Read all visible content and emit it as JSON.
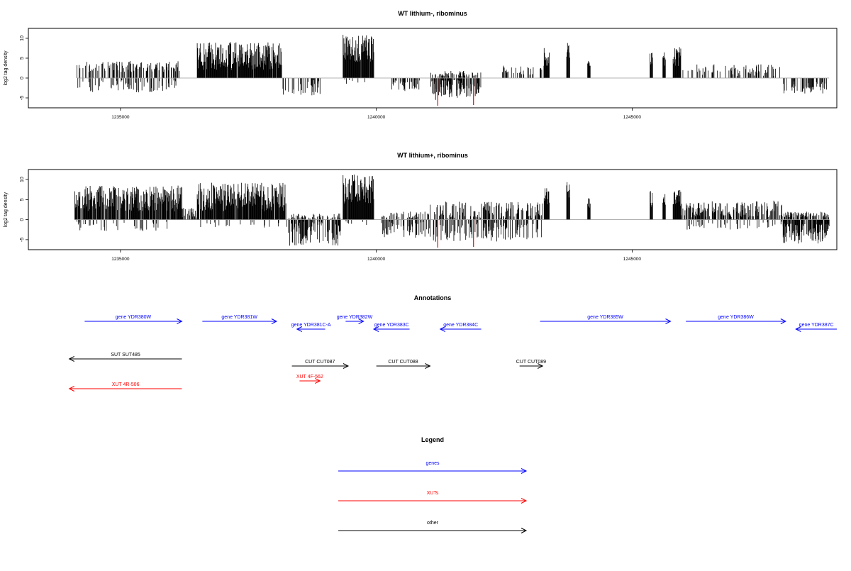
{
  "colors": {
    "axis": "#000000",
    "bar_positive": "#000000",
    "bar_negative": "#000000",
    "bar_highlight": "#ff0000",
    "baseline": "#9a9a9a",
    "gene": "#0000ff",
    "xut": "#ff0000",
    "other": "#000000"
  },
  "chart_data": [
    {
      "type": "bar",
      "title": "WT lithium-, ribominus",
      "ylabel": "log2 tag density",
      "xlim": [
        1233200,
        1249000
      ],
      "ylim": [
        -7.5,
        12.5
      ],
      "xticks": [
        1235000,
        1240000,
        1245000
      ],
      "xtick_labels": [
        "1235000",
        "1240000",
        "1245000"
      ],
      "yticks": [
        -5,
        0,
        5,
        10
      ],
      "ytick_labels": [
        "-5",
        "0",
        "5",
        "10"
      ],
      "grid": false,
      "segments": [
        {
          "from": 1234150,
          "to": 1236150,
          "pos": [
            1.5,
            4.3
          ],
          "neg": [
            -0.5,
            -3.6
          ],
          "density": 0.55,
          "neg_freq": 0.45
        },
        {
          "from": 1236500,
          "to": 1238150,
          "pos": [
            2.0,
            9.0
          ],
          "neg": [
            0,
            0
          ],
          "density": 0.95,
          "neg_freq": 0
        },
        {
          "from": 1238150,
          "to": 1238900,
          "pos": [
            0,
            0
          ],
          "neg": [
            -0.5,
            -4.4
          ],
          "density": 0.35,
          "neg_freq": 1
        },
        {
          "from": 1239350,
          "to": 1239950,
          "pos": [
            4.0,
            11.0
          ],
          "neg": [
            -0.3,
            -1.5
          ],
          "density": 0.98,
          "neg_freq": 0.1
        },
        {
          "from": 1240300,
          "to": 1240850,
          "pos": [
            0,
            0
          ],
          "neg": [
            -0.5,
            -3.5
          ],
          "density": 0.4,
          "neg_freq": 1
        },
        {
          "from": 1241050,
          "to": 1242050,
          "pos": [
            0.3,
            1.8
          ],
          "neg": [
            -0.5,
            -5.0
          ],
          "density": 0.8,
          "neg_freq": 0.85
        },
        {
          "from": 1242450,
          "to": 1243300,
          "pos": [
            0.8,
            3.2
          ],
          "neg": [
            0,
            0
          ],
          "density": 0.25,
          "neg_freq": 0
        },
        {
          "from": 1243280,
          "to": 1243380,
          "pos": [
            3.0,
            8.0
          ],
          "neg": [
            0,
            0
          ],
          "density": 1.0,
          "neg_freq": 0
        },
        {
          "from": 1243720,
          "to": 1243780,
          "pos": [
            5.0,
            10.2
          ],
          "neg": [
            0,
            0
          ],
          "density": 1.0,
          "neg_freq": 0
        },
        {
          "from": 1244130,
          "to": 1244180,
          "pos": [
            3.0,
            5.5
          ],
          "neg": [
            0,
            0
          ],
          "density": 1.0,
          "neg_freq": 0
        },
        {
          "from": 1245350,
          "to": 1245400,
          "pos": [
            3.0,
            7.8
          ],
          "neg": [
            0,
            0
          ],
          "density": 1.0,
          "neg_freq": 0
        },
        {
          "from": 1245600,
          "to": 1245650,
          "pos": [
            3.0,
            7.0
          ],
          "neg": [
            0,
            0
          ],
          "density": 1.0,
          "neg_freq": 0
        },
        {
          "from": 1245800,
          "to": 1245950,
          "pos": [
            3.0,
            8.0
          ],
          "neg": [
            0,
            0
          ],
          "density": 1.0,
          "neg_freq": 0
        },
        {
          "from": 1245950,
          "to": 1247900,
          "pos": [
            0.5,
            3.5
          ],
          "neg": [
            0,
            0
          ],
          "density": 0.25,
          "neg_freq": 0
        },
        {
          "from": 1247950,
          "to": 1248850,
          "pos": [
            0,
            0
          ],
          "neg": [
            -0.8,
            -4.0
          ],
          "density": 0.4,
          "neg_freq": 1
        }
      ],
      "highlights": [
        {
          "x": 1241160,
          "value": -5.5
        },
        {
          "x": 1241200,
          "value": -7.0
        },
        {
          "x": 1241900,
          "value": -6.8
        }
      ]
    },
    {
      "type": "bar",
      "title": "WT lithium+, ribominus",
      "ylabel": "log2 tag density",
      "xlim": [
        1233200,
        1249000
      ],
      "ylim": [
        -7.5,
        12.5
      ],
      "xticks": [
        1235000,
        1240000,
        1245000
      ],
      "xtick_labels": [
        "1235000",
        "1240000",
        "1245000"
      ],
      "yticks": [
        -5,
        0,
        5,
        10
      ],
      "ytick_labels": [
        "-5",
        "0",
        "5",
        "10"
      ],
      "grid": false,
      "segments": [
        {
          "from": 1234100,
          "to": 1236200,
          "pos": [
            2.0,
            8.5
          ],
          "neg": [
            -0.5,
            -3.0
          ],
          "density": 0.95,
          "neg_freq": 0.15
        },
        {
          "from": 1236200,
          "to": 1236500,
          "pos": [
            0.5,
            3.0
          ],
          "neg": [
            0,
            0
          ],
          "density": 0.6,
          "neg_freq": 0
        },
        {
          "from": 1236500,
          "to": 1238250,
          "pos": [
            2.0,
            9.2
          ],
          "neg": [
            -0.5,
            -2.0
          ],
          "density": 0.95,
          "neg_freq": 0.1
        },
        {
          "from": 1238250,
          "to": 1239300,
          "pos": [
            0.2,
            1.5
          ],
          "neg": [
            -0.5,
            -6.5
          ],
          "density": 0.65,
          "neg_freq": 0.85
        },
        {
          "from": 1239350,
          "to": 1239950,
          "pos": [
            4.0,
            11.5
          ],
          "neg": [
            -0.3,
            -1.5
          ],
          "density": 0.98,
          "neg_freq": 0.1
        },
        {
          "from": 1240100,
          "to": 1241050,
          "pos": [
            0.3,
            2.0
          ],
          "neg": [
            -0.5,
            -4.5
          ],
          "density": 0.6,
          "neg_freq": 0.7
        },
        {
          "from": 1241050,
          "to": 1243250,
          "pos": [
            0.3,
            4.5
          ],
          "neg": [
            -0.5,
            -5.5
          ],
          "density": 0.7,
          "neg_freq": 0.55
        },
        {
          "from": 1243280,
          "to": 1243380,
          "pos": [
            3.0,
            8.0
          ],
          "neg": [
            0,
            0
          ],
          "density": 1.0,
          "neg_freq": 0
        },
        {
          "from": 1243720,
          "to": 1243780,
          "pos": [
            5.0,
            10.0
          ],
          "neg": [
            0,
            0
          ],
          "density": 1.0,
          "neg_freq": 0
        },
        {
          "from": 1244130,
          "to": 1244180,
          "pos": [
            3.0,
            5.5
          ],
          "neg": [
            0,
            0
          ],
          "density": 1.0,
          "neg_freq": 0
        },
        {
          "from": 1245350,
          "to": 1245400,
          "pos": [
            3.0,
            7.5
          ],
          "neg": [
            0,
            0
          ],
          "density": 1.0,
          "neg_freq": 0
        },
        {
          "from": 1245600,
          "to": 1245650,
          "pos": [
            3.0,
            7.0
          ],
          "neg": [
            0,
            0
          ],
          "density": 1.0,
          "neg_freq": 0
        },
        {
          "from": 1245800,
          "to": 1245950,
          "pos": [
            3.0,
            7.5
          ],
          "neg": [
            0,
            0
          ],
          "density": 1.0,
          "neg_freq": 0
        },
        {
          "from": 1245950,
          "to": 1247950,
          "pos": [
            0.5,
            4.8
          ],
          "neg": [
            -0.5,
            -2.5
          ],
          "density": 0.7,
          "neg_freq": 0.2
        },
        {
          "from": 1247950,
          "to": 1248850,
          "pos": [
            0.5,
            2.0
          ],
          "neg": [
            -1.0,
            -6.0
          ],
          "density": 0.95,
          "neg_freq": 0.9
        }
      ],
      "highlights": [
        {
          "x": 1241160,
          "value": -5.5
        },
        {
          "x": 1241200,
          "value": -7.0
        },
        {
          "x": 1241900,
          "value": -6.8
        }
      ]
    }
  ],
  "annotations": {
    "title": "Annotations",
    "features": [
      {
        "label": "gene YDR380W",
        "kind": "gene",
        "start": 1234300,
        "end": 1236200,
        "strand": "+",
        "row": 0
      },
      {
        "label": "gene YDR381W",
        "kind": "gene",
        "start": 1236600,
        "end": 1238050,
        "strand": "+",
        "row": 0
      },
      {
        "label": "gene YDR381C-A",
        "kind": "gene",
        "start": 1238450,
        "end": 1239000,
        "strand": "-",
        "row": 1
      },
      {
        "label": "gene YDR382W",
        "kind": "gene",
        "start": 1239400,
        "end": 1239750,
        "strand": "+",
        "row": 0
      },
      {
        "label": "gene YDR383C",
        "kind": "gene",
        "start": 1239950,
        "end": 1240650,
        "strand": "-",
        "row": 1
      },
      {
        "label": "gene YDR384C",
        "kind": "gene",
        "start": 1241250,
        "end": 1242050,
        "strand": "-",
        "row": 1
      },
      {
        "label": "gene YDR385W",
        "kind": "gene",
        "start": 1243200,
        "end": 1245750,
        "strand": "+",
        "row": 0
      },
      {
        "label": "gene YDR386W",
        "kind": "gene",
        "start": 1246050,
        "end": 1248000,
        "strand": "+",
        "row": 0
      },
      {
        "label": "gene YDR387C",
        "kind": "gene",
        "start": 1248200,
        "end": 1249000,
        "strand": "-",
        "row": 1
      },
      {
        "label": "SUT SUT485",
        "kind": "other",
        "start": 1234000,
        "end": 1236200,
        "strand": "-",
        "row": 2
      },
      {
        "label": "CUT CUT087",
        "kind": "other",
        "start": 1238350,
        "end": 1239450,
        "strand": "+",
        "row": 3
      },
      {
        "label": "CUT CUT088",
        "kind": "other",
        "start": 1240000,
        "end": 1241050,
        "strand": "+",
        "row": 3
      },
      {
        "label": "CUT CUT089",
        "kind": "other",
        "start": 1242800,
        "end": 1243250,
        "strand": "+",
        "row": 3
      },
      {
        "label": "XUT 4F-562",
        "kind": "xut",
        "start": 1238500,
        "end": 1238900,
        "strand": "+",
        "row": 4
      },
      {
        "label": "XUT 4R-506",
        "kind": "xut",
        "start": 1234000,
        "end": 1236200,
        "strand": "-",
        "row": 5
      }
    ]
  },
  "legend": {
    "title": "Legend",
    "items": [
      {
        "label": "genes",
        "kind": "gene"
      },
      {
        "label": "XUTs",
        "kind": "xut"
      },
      {
        "label": "other",
        "kind": "other"
      }
    ]
  }
}
